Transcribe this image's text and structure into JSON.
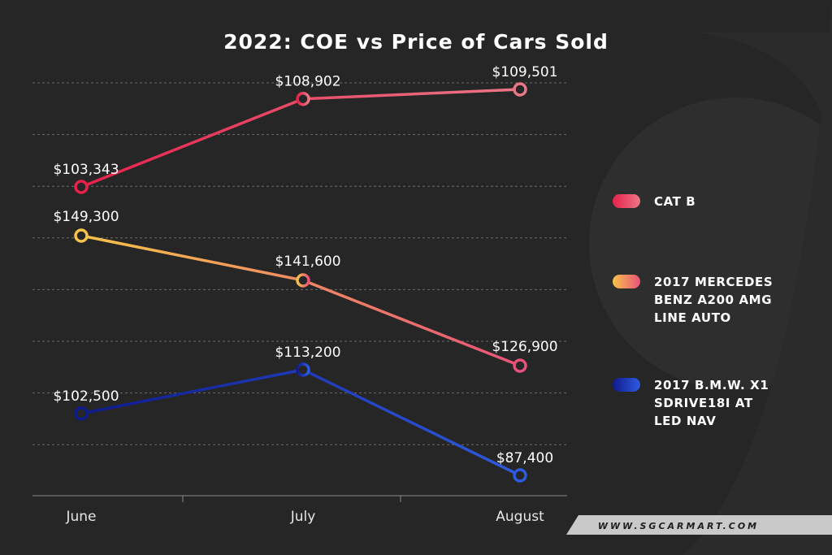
{
  "chart_data": {
    "type": "line",
    "title": "2022: COE vs Price of Cars Sold",
    "categories": [
      "June",
      "July",
      "August"
    ],
    "series": [
      {
        "name": "CAT B",
        "values": [
          103343,
          108902,
          109501
        ],
        "value_labels": [
          "$103,343",
          "$108,902",
          "$109,501"
        ],
        "colors": [
          "#e8214a",
          "#ea7787"
        ]
      },
      {
        "name": "2017 MERCEDES BENZ A200 AMG LINE AUTO",
        "legend_lines": [
          "2017 MERCEDES",
          "BENZ A200 AMG",
          "LINE AUTO"
        ],
        "values": [
          149300,
          141600,
          126900
        ],
        "value_labels": [
          "$149,300",
          "$141,600",
          "$126,900"
        ],
        "colors": [
          "#f6c34a",
          "#e8527a"
        ]
      },
      {
        "name": "2017 B.M.W. X1 SDRIVE18I AT LED NAV",
        "legend_lines": [
          "2017 B.M.W. X1",
          "SDRIVE18I AT",
          "LED NAV"
        ],
        "values": [
          102500,
          113200,
          87400
        ],
        "value_labels": [
          "$102,500",
          "$113,200",
          "$87,400"
        ],
        "colors": [
          "#0f1a8c",
          "#2e5be0"
        ]
      }
    ],
    "grid": true,
    "legend_position": "right"
  },
  "footer": {
    "text": "WWW.SGCARMART.COM"
  },
  "colors": {
    "background": "#262626",
    "grid": "#6a6a6a",
    "footer_bg": "#c9c9c9"
  }
}
